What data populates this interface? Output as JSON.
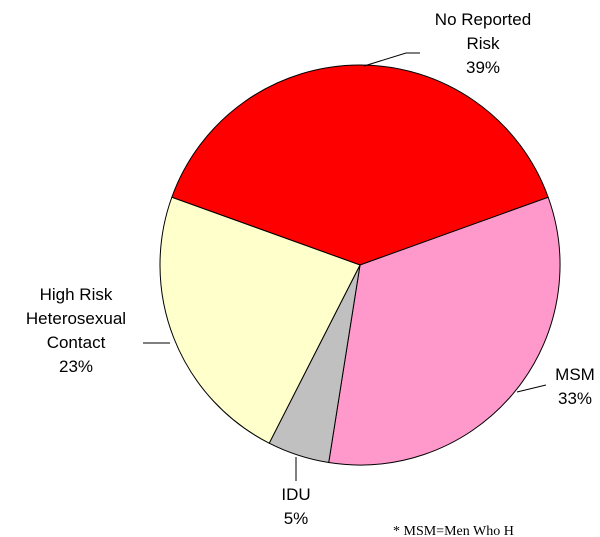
{
  "chart_data": {
    "type": "pie",
    "categories": [
      "No Reported Risk",
      "MSM",
      "IDU",
      "High Risk Heterosexual Contact"
    ],
    "values": [
      39,
      33,
      5,
      23
    ],
    "value_labels": [
      "39%",
      "33%",
      "5%",
      "23%"
    ],
    "colors": [
      "#ff0000",
      "#ff99cc",
      "#c0c0c0",
      "#ffffcc"
    ],
    "footnote": "* MSM=Men Who H"
  }
}
